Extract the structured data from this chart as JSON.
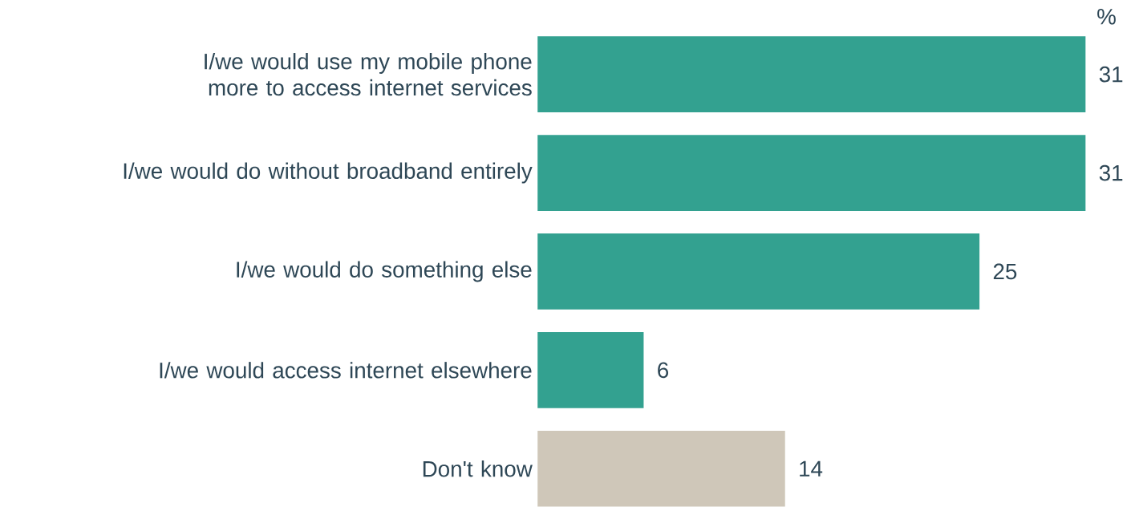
{
  "chart_data": {
    "type": "bar",
    "orientation": "horizontal",
    "categories": [
      "I/we would use my mobile phone more to access internet services",
      "I/we would do without broadband entirely",
      "I/we would do something else",
      "I/we would access internet elsewhere",
      "Don't know"
    ],
    "values": [
      31,
      31,
      25,
      6,
      14
    ],
    "colors": [
      "#33a190",
      "#33a190",
      "#33a190",
      "#33a190",
      "#cfc7b9"
    ],
    "data_labels": true,
    "annotations": [
      "%"
    ]
  }
}
